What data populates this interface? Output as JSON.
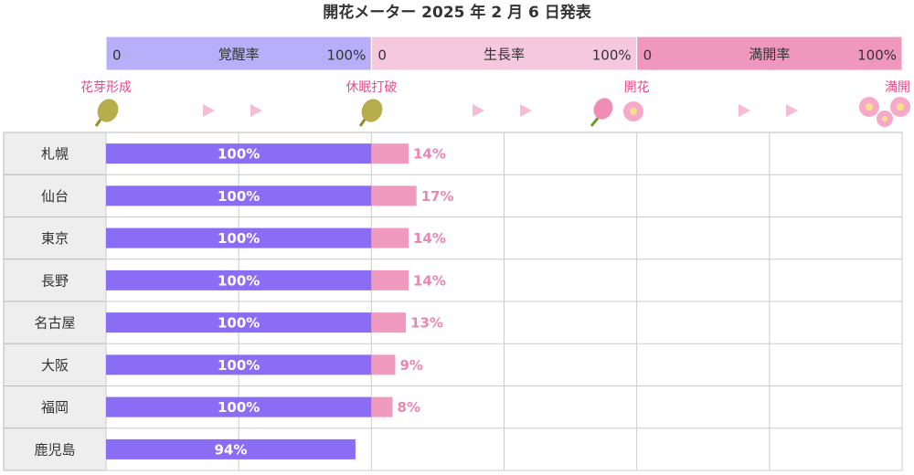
{
  "chart_data": {
    "type": "bar",
    "title": "開花メーター 2025 年 2 月 6 日発表",
    "milestones": [
      "花芽形成",
      "休眠打破",
      "開花",
      "満開"
    ],
    "categories": [
      "札幌",
      "仙台",
      "東京",
      "長野",
      "名古屋",
      "大阪",
      "福岡",
      "鹿児島"
    ],
    "segments": [
      {
        "name": "覚醒率",
        "color": "#b9aefa",
        "bar_color": "#8b6cf5",
        "label_color": "#ffffff",
        "xlim": [
          0,
          100
        ],
        "xticks": [
          0,
          {
            "value": 100,
            "label": "100%"
          }
        ],
        "values": [
          100,
          100,
          100,
          100,
          100,
          100,
          100,
          94
        ],
        "value_labels": [
          "100%",
          "100%",
          "100%",
          "100%",
          "100%",
          "100%",
          "100%",
          "94%"
        ]
      },
      {
        "name": "生長率",
        "color": "#f6c8de",
        "bar_color": "#f09ac0",
        "label_color": "#ea86b2",
        "xlim": [
          0,
          100
        ],
        "xticks": [
          0,
          {
            "value": 100,
            "label": "100%"
          }
        ],
        "values": [
          14,
          17,
          14,
          14,
          13,
          9,
          8,
          null
        ],
        "value_labels": [
          "14%",
          "17%",
          "14%",
          "14%",
          "13%",
          "9%",
          "8%",
          null
        ]
      },
      {
        "name": "満開率",
        "color": "#ef97bd",
        "xlim": [
          0,
          100
        ],
        "xticks": [
          0,
          {
            "value": 100,
            "label": "100%"
          }
        ]
      }
    ]
  }
}
